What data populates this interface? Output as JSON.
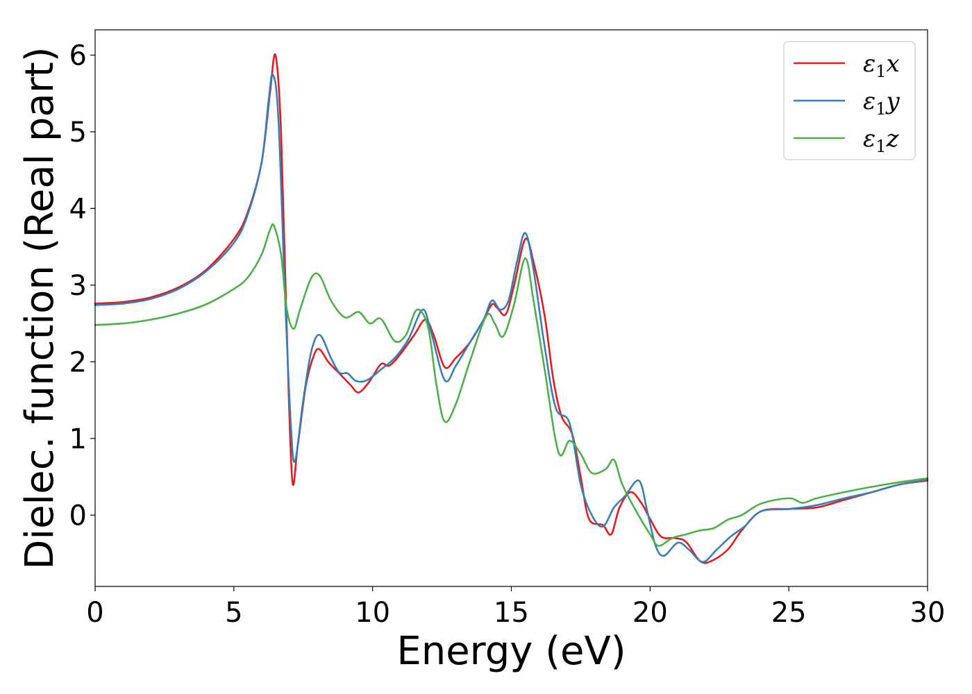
{
  "chart_data": {
    "type": "line",
    "xlabel": "Energy (eV)",
    "ylabel": "Dielec. function (Real part)",
    "xlim": [
      0,
      30
    ],
    "ylim": [
      -0.93,
      6.33
    ],
    "xticks": [
      0,
      5,
      10,
      15,
      20,
      25,
      30
    ],
    "yticks": [
      0,
      1,
      2,
      3,
      4,
      5,
      6
    ],
    "grid": false,
    "legend_position": "top-right",
    "series": [
      {
        "name": "ε1x",
        "legend_symbol": "ε",
        "legend_sub": "1",
        "legend_var": "x",
        "color": "#e41a1c",
        "points": [
          [
            0,
            2.76
          ],
          [
            1,
            2.78
          ],
          [
            2,
            2.84
          ],
          [
            3,
            2.97
          ],
          [
            4,
            3.2
          ],
          [
            5,
            3.6
          ],
          [
            5.5,
            3.95
          ],
          [
            6,
            4.6
          ],
          [
            6.3,
            5.5
          ],
          [
            6.5,
            6.0
          ],
          [
            6.7,
            5.0
          ],
          [
            6.9,
            2.5
          ],
          [
            7.1,
            0.47
          ],
          [
            7.3,
            0.9
          ],
          [
            7.6,
            1.7
          ],
          [
            7.9,
            2.1
          ],
          [
            8.1,
            2.16
          ],
          [
            8.4,
            2.0
          ],
          [
            8.8,
            1.85
          ],
          [
            9.2,
            1.7
          ],
          [
            9.5,
            1.6
          ],
          [
            9.9,
            1.75
          ],
          [
            10.3,
            1.97
          ],
          [
            10.6,
            1.95
          ],
          [
            11,
            2.1
          ],
          [
            11.5,
            2.35
          ],
          [
            11.9,
            2.55
          ],
          [
            12.2,
            2.35
          ],
          [
            12.6,
            1.93
          ],
          [
            13,
            2.05
          ],
          [
            13.5,
            2.25
          ],
          [
            14,
            2.55
          ],
          [
            14.3,
            2.75
          ],
          [
            14.5,
            2.7
          ],
          [
            14.8,
            2.62
          ],
          [
            15.1,
            3.0
          ],
          [
            15.5,
            3.6
          ],
          [
            15.8,
            3.3
          ],
          [
            16.2,
            2.6
          ],
          [
            16.5,
            1.8
          ],
          [
            16.8,
            1.3
          ],
          [
            17.2,
            1.05
          ],
          [
            17.5,
            0.5
          ],
          [
            17.8,
            -0.05
          ],
          [
            18.3,
            -0.13
          ],
          [
            18.6,
            -0.25
          ],
          [
            18.9,
            0.1
          ],
          [
            19.3,
            0.3
          ],
          [
            19.7,
            0.15
          ],
          [
            20,
            -0.05
          ],
          [
            20.4,
            -0.28
          ],
          [
            20.9,
            -0.3
          ],
          [
            21.3,
            -0.35
          ],
          [
            21.8,
            -0.6
          ],
          [
            22.2,
            -0.6
          ],
          [
            22.8,
            -0.45
          ],
          [
            23.3,
            -0.2
          ],
          [
            24,
            0.05
          ],
          [
            25,
            0.08
          ],
          [
            26,
            0.1
          ],
          [
            27,
            0.2
          ],
          [
            28,
            0.3
          ],
          [
            29,
            0.4
          ],
          [
            30,
            0.45
          ]
        ]
      },
      {
        "name": "ε1y",
        "legend_symbol": "ε",
        "legend_sub": "1",
        "legend_var": "y",
        "color": "#377eb8",
        "points": [
          [
            0,
            2.74
          ],
          [
            1,
            2.76
          ],
          [
            2,
            2.82
          ],
          [
            3,
            2.95
          ],
          [
            4,
            3.18
          ],
          [
            5,
            3.55
          ],
          [
            5.5,
            3.92
          ],
          [
            6,
            4.6
          ],
          [
            6.25,
            5.4
          ],
          [
            6.4,
            5.75
          ],
          [
            6.6,
            5.2
          ],
          [
            6.85,
            2.8
          ],
          [
            7.05,
            1.2
          ],
          [
            7.2,
            0.7
          ],
          [
            7.5,
            1.5
          ],
          [
            7.8,
            2.15
          ],
          [
            8.1,
            2.35
          ],
          [
            8.5,
            2.05
          ],
          [
            8.8,
            1.86
          ],
          [
            9.1,
            1.85
          ],
          [
            9.4,
            1.75
          ],
          [
            9.8,
            1.76
          ],
          [
            10.3,
            1.9
          ],
          [
            10.8,
            2.05
          ],
          [
            11.3,
            2.3
          ],
          [
            11.8,
            2.68
          ],
          [
            12.1,
            2.4
          ],
          [
            12.6,
            1.76
          ],
          [
            13,
            1.95
          ],
          [
            13.5,
            2.25
          ],
          [
            14,
            2.55
          ],
          [
            14.3,
            2.8
          ],
          [
            14.6,
            2.68
          ],
          [
            14.9,
            2.8
          ],
          [
            15.2,
            3.3
          ],
          [
            15.5,
            3.68
          ],
          [
            15.8,
            3.2
          ],
          [
            16.2,
            2.2
          ],
          [
            16.6,
            1.4
          ],
          [
            17.1,
            1.2
          ],
          [
            17.5,
            0.4
          ],
          [
            17.9,
            0.0
          ],
          [
            18.3,
            -0.15
          ],
          [
            18.7,
            0.1
          ],
          [
            19.1,
            0.25
          ],
          [
            19.6,
            0.45
          ],
          [
            19.9,
            0.05
          ],
          [
            20.2,
            -0.4
          ],
          [
            20.5,
            -0.53
          ],
          [
            21,
            -0.36
          ],
          [
            21.4,
            -0.45
          ],
          [
            21.9,
            -0.61
          ],
          [
            22.4,
            -0.45
          ],
          [
            22.9,
            -0.28
          ],
          [
            23.4,
            -0.15
          ],
          [
            24,
            0.05
          ],
          [
            25,
            0.08
          ],
          [
            26,
            0.13
          ],
          [
            27,
            0.22
          ],
          [
            28,
            0.3
          ],
          [
            29,
            0.4
          ],
          [
            30,
            0.46
          ]
        ]
      },
      {
        "name": "ε1z",
        "legend_symbol": "ε",
        "legend_sub": "1",
        "legend_var": "z",
        "color": "#4daf4a",
        "points": [
          [
            0,
            2.48
          ],
          [
            1,
            2.5
          ],
          [
            2,
            2.55
          ],
          [
            3,
            2.63
          ],
          [
            4,
            2.75
          ],
          [
            5,
            2.95
          ],
          [
            5.5,
            3.1
          ],
          [
            6,
            3.4
          ],
          [
            6.3,
            3.72
          ],
          [
            6.45,
            3.77
          ],
          [
            6.7,
            3.4
          ],
          [
            6.9,
            2.7
          ],
          [
            7.15,
            2.43
          ],
          [
            7.4,
            2.7
          ],
          [
            7.8,
            3.1
          ],
          [
            8.1,
            3.12
          ],
          [
            8.5,
            2.8
          ],
          [
            9,
            2.58
          ],
          [
            9.5,
            2.65
          ],
          [
            9.9,
            2.5
          ],
          [
            10.3,
            2.56
          ],
          [
            10.8,
            2.27
          ],
          [
            11.2,
            2.35
          ],
          [
            11.6,
            2.68
          ],
          [
            12,
            2.45
          ],
          [
            12.3,
            1.7
          ],
          [
            12.6,
            1.22
          ],
          [
            13,
            1.45
          ],
          [
            13.5,
            2.0
          ],
          [
            14.1,
            2.6
          ],
          [
            14.4,
            2.5
          ],
          [
            14.7,
            2.33
          ],
          [
            15.1,
            2.75
          ],
          [
            15.5,
            3.35
          ],
          [
            15.8,
            2.8
          ],
          [
            16.2,
            1.9
          ],
          [
            16.7,
            0.82
          ],
          [
            17.1,
            0.97
          ],
          [
            17.5,
            0.8
          ],
          [
            17.9,
            0.55
          ],
          [
            18.4,
            0.6
          ],
          [
            18.7,
            0.72
          ],
          [
            19,
            0.4
          ],
          [
            19.5,
            0.05
          ],
          [
            20,
            -0.25
          ],
          [
            20.3,
            -0.4
          ],
          [
            20.8,
            -0.3
          ],
          [
            21.3,
            -0.25
          ],
          [
            21.8,
            -0.2
          ],
          [
            22.3,
            -0.17
          ],
          [
            22.8,
            -0.06
          ],
          [
            23.3,
            0.0
          ],
          [
            24,
            0.15
          ],
          [
            25,
            0.22
          ],
          [
            25.5,
            0.16
          ],
          [
            26,
            0.22
          ],
          [
            27,
            0.3
          ],
          [
            28,
            0.37
          ],
          [
            29,
            0.43
          ],
          [
            30,
            0.48
          ]
        ]
      }
    ]
  }
}
